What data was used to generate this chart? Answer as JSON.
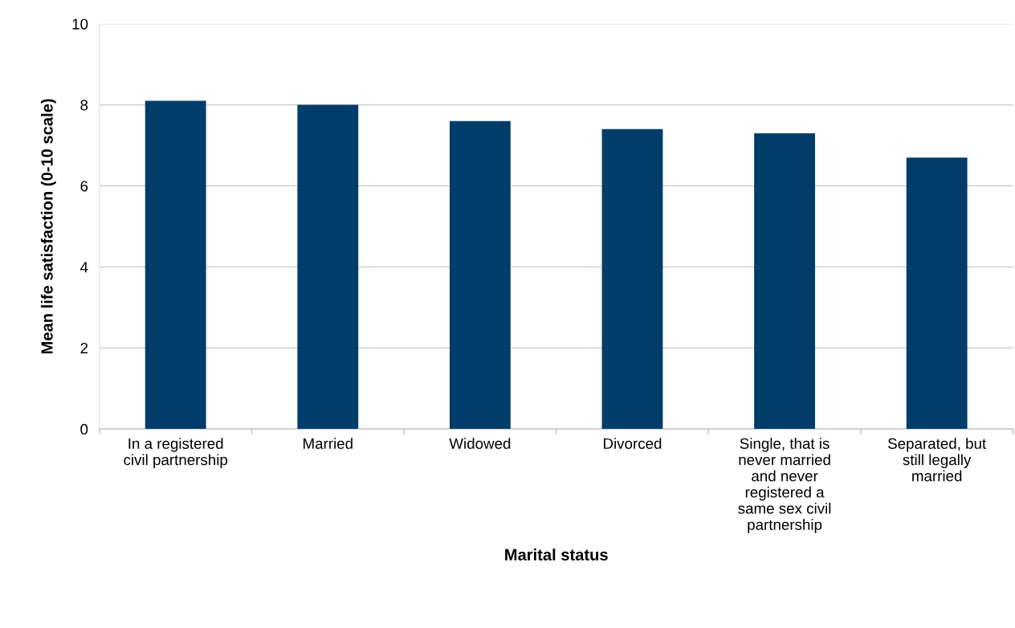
{
  "chart_data": {
    "type": "bar",
    "xlabel": "Marital status",
    "ylabel": "Mean life satisfaction (0-10 scale)",
    "categories": [
      "In a registered\ncivil partnership",
      "Married",
      "Widowed",
      "Divorced",
      "Single, that is\nnever married\nand never\nregistered a\nsame sex civil\npartnership",
      "Separated, but\nstill legally\nmarried"
    ],
    "values": [
      8.1,
      8.0,
      7.6,
      7.4,
      7.3,
      6.7
    ],
    "color": "#003d6b",
    "ylim": [
      0,
      10
    ],
    "yticks": [
      0,
      2,
      4,
      6,
      8,
      10
    ],
    "grid": "y"
  }
}
